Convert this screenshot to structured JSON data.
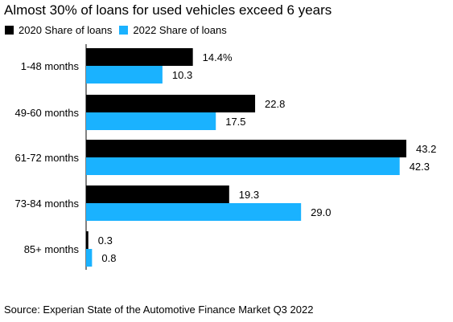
{
  "title": "Almost 30% of loans for used vehicles exceed 6 years",
  "legend": [
    {
      "label": "2020 Share of loans",
      "color": "#000000"
    },
    {
      "label": "2022 Share of loans",
      "color": "#1ab2ff"
    }
  ],
  "source": "Source: Experian State of the Automotive Finance Market Q3 2022",
  "chart_data": {
    "type": "bar",
    "orientation": "horizontal",
    "categories": [
      "1-48 months",
      "49-60 months",
      "61-72 months",
      "73-84 months",
      "85+ months"
    ],
    "series": [
      {
        "name": "2020 Share of loans",
        "color": "#000000",
        "values": [
          14.4,
          22.8,
          43.2,
          19.3,
          0.3
        ],
        "labels": [
          "14.4%",
          "22.8",
          "43.2",
          "19.3",
          "0.3"
        ]
      },
      {
        "name": "2022 Share of loans",
        "color": "#1ab2ff",
        "values": [
          10.3,
          17.5,
          42.3,
          29.0,
          0.8
        ],
        "labels": [
          "10.3",
          "17.5",
          "42.3",
          "29.0",
          "0.8"
        ]
      }
    ],
    "xlim": [
      0,
      45
    ],
    "grid": false,
    "legend_position": "top-left"
  }
}
